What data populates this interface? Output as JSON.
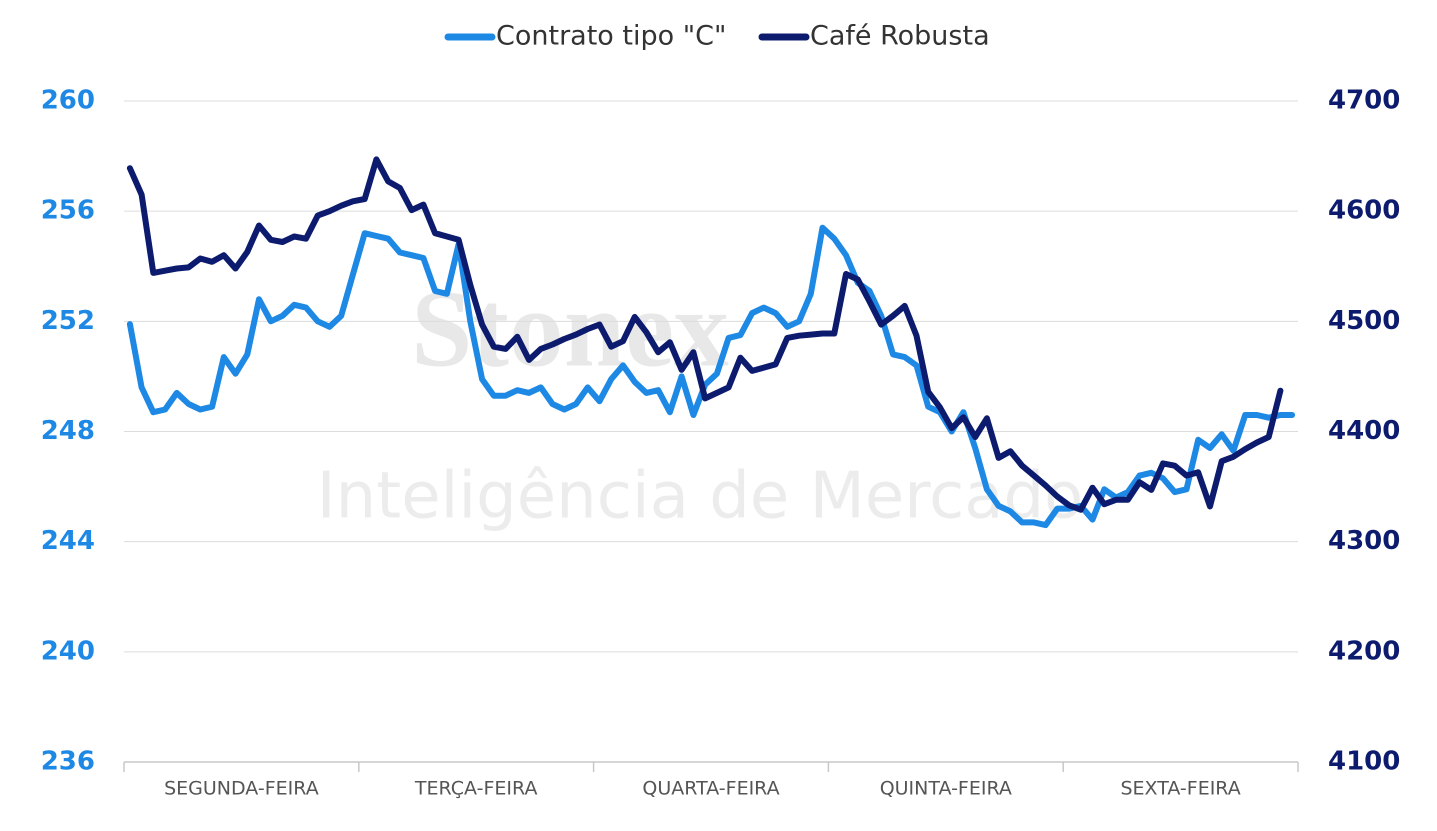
{
  "chart_data": {
    "type": "line",
    "watermark": {
      "brand": "Stonex",
      "subtitle": "Inteligência de Mercado"
    },
    "categories": [
      "SEGUNDA-FEIRA",
      "TERÇA-FEIRA",
      "QUARTA-FEIRA",
      "QUINTA-FEIRA",
      "SEXTA-FEIRA"
    ],
    "series": [
      {
        "name": "Contrato tipo \"C\"",
        "color": "#1e88e5",
        "axis": "y",
        "values": [
          [
            251.9,
            249.6,
            248.7,
            248.8,
            249.4,
            249.0,
            248.8,
            248.9,
            250.7,
            250.1,
            250.8,
            252.8,
            252.0,
            252.2,
            252.6,
            252.5,
            252.0,
            251.8,
            252.2,
            253.7
          ],
          [
            255.2,
            255.1,
            255.0,
            254.5,
            254.4,
            254.3,
            253.1,
            253.0,
            254.8,
            252.0,
            249.9,
            249.3,
            249.3,
            249.5,
            249.4,
            249.6,
            249.0,
            248.8,
            249.0,
            249.6
          ],
          [
            249.1,
            249.9,
            250.4,
            249.8,
            249.4,
            249.5,
            248.7,
            250.0,
            248.6,
            249.7,
            250.1,
            251.4,
            251.5,
            252.3,
            252.5,
            252.3,
            251.8,
            252.0,
            253.0,
            255.4
          ],
          [
            255.0,
            254.4,
            253.4,
            253.1,
            252.2,
            250.8,
            250.7,
            250.4,
            248.9,
            248.7,
            248.0,
            248.7,
            247.4,
            245.9,
            245.3,
            245.1,
            244.7,
            244.7,
            244.6,
            245.2
          ],
          [
            245.2,
            245.3,
            244.8,
            245.9,
            245.6,
            245.8,
            246.4,
            246.5,
            246.3,
            245.8,
            245.9,
            247.7,
            247.4,
            247.9,
            247.3,
            248.6,
            248.6,
            248.5,
            248.6,
            248.6
          ]
        ]
      },
      {
        "name": "Café Robusta",
        "color": "#0d1b6e",
        "axis": "y2",
        "values": [
          [
            4639,
            4615,
            4544,
            4546,
            4548,
            4549,
            4557,
            4554,
            4560,
            4548,
            4563,
            4587,
            4574,
            4572,
            4577,
            4575,
            4596,
            4600,
            4605,
            4609
          ],
          [
            4611,
            4647,
            4627,
            4621,
            4601,
            4606,
            4580,
            4577,
            4574,
            4533,
            4497,
            4477,
            4475,
            4486,
            4465,
            4475,
            4479,
            4484,
            4488,
            4493
          ],
          [
            4497,
            4477,
            4482,
            4504,
            4490,
            4472,
            4481,
            4456,
            4472,
            4430,
            4435,
            4440,
            4467,
            4455,
            4458,
            4461,
            4485,
            4487,
            4488,
            4489
          ],
          [
            4489,
            4543,
            4538,
            4518,
            4497,
            4505,
            4514,
            4487,
            4436,
            4422,
            4403,
            4413,
            4395,
            4412,
            4376,
            4382,
            4369,
            4360,
            4351,
            4341
          ],
          [
            4333,
            4329,
            4349,
            4334,
            4338,
            4338,
            4354,
            4347,
            4371,
            4369,
            4360,
            4363,
            4332,
            4373,
            4377,
            4384,
            4390,
            4395,
            4437,
            null
          ]
        ]
      }
    ],
    "ylim": [
      236,
      260
    ],
    "yticks": [
      236,
      240,
      244,
      248,
      252,
      256,
      260
    ],
    "ycolor": "#1e88e5",
    "y2lim": [
      4100,
      4700
    ],
    "y2ticks": [
      4100,
      4200,
      4300,
      4400,
      4500,
      4600,
      4700
    ],
    "y2color": "#0d1b6e",
    "grid": true,
    "legend": "top"
  }
}
